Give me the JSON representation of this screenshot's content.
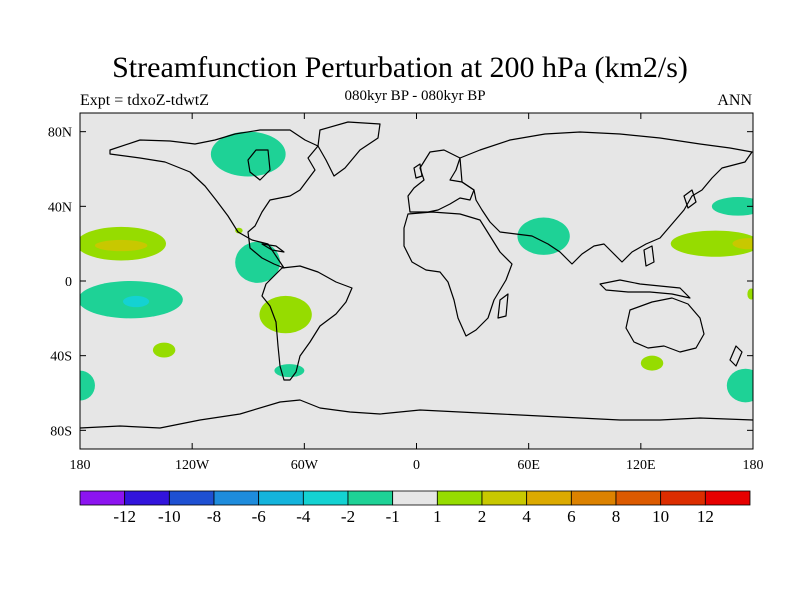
{
  "header": {
    "title": "Streamfunction Perturbation at 200 hPa (km2/s)",
    "experiment": "Expt = tdxoZ-tdwtZ",
    "period": "080kyr BP - 080kyr BP",
    "season": "ANN"
  },
  "chart_data": {
    "type": "heatmap",
    "projection": "cylindrical-equidistant",
    "title": "Streamfunction Perturbation at 200 hPa (km2/s)",
    "xlim": [
      -180,
      180
    ],
    "ylim": [
      -90,
      90
    ],
    "x_ticks": [
      {
        "value": -180,
        "label": "180"
      },
      {
        "value": -120,
        "label": "120W"
      },
      {
        "value": -60,
        "label": "60W"
      },
      {
        "value": 0,
        "label": "0"
      },
      {
        "value": 60,
        "label": "60E"
      },
      {
        "value": 120,
        "label": "120E"
      },
      {
        "value": 180,
        "label": "180"
      }
    ],
    "y_ticks": [
      {
        "value": 80,
        "label": "80N"
      },
      {
        "value": 40,
        "label": "40N"
      },
      {
        "value": 0,
        "label": "0"
      },
      {
        "value": -40,
        "label": "40S"
      },
      {
        "value": -80,
        "label": "80S"
      }
    ],
    "background_color": "#e6e6e6",
    "colorbar": {
      "colors": [
        "#8c14f0",
        "#3214dc",
        "#1e50d2",
        "#1e8cdc",
        "#14b4dc",
        "#14d2d2",
        "#1ed296",
        "#e6e6e6",
        "#96dc00",
        "#c8c800",
        "#dcaa00",
        "#dc8200",
        "#dc5a00",
        "#dc2d00",
        "#e60000"
      ],
      "labels": [
        "-12",
        "-10",
        "-8",
        "-6",
        "-4",
        "-2",
        "-1",
        "1",
        "2",
        "4",
        "6",
        "8",
        "10",
        "12"
      ]
    },
    "anomalies": [
      {
        "lon": -90,
        "lat": 68,
        "rx": 20,
        "ry": 12,
        "level": "-1",
        "color": "#1ed296"
      },
      {
        "lon": -158,
        "lat": 20,
        "rx": 24,
        "ry": 9,
        "level": "1",
        "color": "#96dc00"
      },
      {
        "lon": -158,
        "lat": 19,
        "rx": 14,
        "ry": 3,
        "level": "2",
        "color": "#c8c800"
      },
      {
        "lon": -153,
        "lat": -10,
        "rx": 28,
        "ry": 10,
        "level": "-1",
        "color": "#1ed296"
      },
      {
        "lon": -150,
        "lat": -11,
        "rx": 7,
        "ry": 3,
        "level": "-2",
        "color": "#14d2d2"
      },
      {
        "lon": -95,
        "lat": 27,
        "rx": 2,
        "ry": 1.5,
        "level": "1",
        "color": "#96dc00"
      },
      {
        "lon": -85,
        "lat": 10,
        "rx": 12,
        "ry": 11,
        "level": "-1",
        "color": "#1ed296"
      },
      {
        "lon": -70,
        "lat": -18,
        "rx": 14,
        "ry": 10,
        "level": "1",
        "color": "#96dc00"
      },
      {
        "lon": -135,
        "lat": -37,
        "rx": 6,
        "ry": 4,
        "level": "1",
        "color": "#96dc00"
      },
      {
        "lon": -68,
        "lat": -48,
        "rx": 8,
        "ry": 3.5,
        "level": "-1",
        "color": "#1ed296"
      },
      {
        "lon": -180,
        "lat": -56,
        "rx": 8,
        "ry": 8,
        "level": "-1",
        "color": "#1ed296"
      },
      {
        "lon": 68,
        "lat": 24,
        "rx": 14,
        "ry": 10,
        "level": "-1",
        "color": "#1ed296"
      },
      {
        "lon": 172,
        "lat": 40,
        "rx": 14,
        "ry": 5,
        "level": "-1",
        "color": "#1ed296"
      },
      {
        "lon": 160,
        "lat": 20,
        "rx": 24,
        "ry": 7,
        "level": "1",
        "color": "#96dc00"
      },
      {
        "lon": 178,
        "lat": 20,
        "rx": 9,
        "ry": 3,
        "level": "2",
        "color": "#c8c800"
      },
      {
        "lon": 179,
        "lat": -7,
        "rx": 2,
        "ry": 3,
        "level": "1",
        "color": "#96dc00"
      },
      {
        "lon": 126,
        "lat": -44,
        "rx": 6,
        "ry": 4,
        "level": "1",
        "color": "#96dc00"
      },
      {
        "lon": 176,
        "lat": -56,
        "rx": 10,
        "ry": 9,
        "level": "-1",
        "color": "#1ed296"
      }
    ]
  }
}
